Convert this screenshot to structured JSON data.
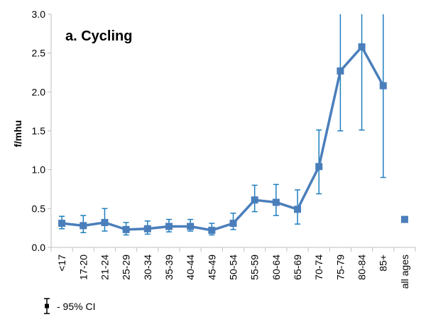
{
  "chart_data": {
    "type": "line",
    "title": "a. Cycling",
    "ylabel": "f/mhu",
    "xlabel": "",
    "ylim": [
      0,
      3.0
    ],
    "yticks": [
      "0.0",
      "0.5",
      "1.0",
      "1.5",
      "2.0",
      "2.5",
      "3.0"
    ],
    "grid": false,
    "categories": [
      "<17",
      "17-20",
      "21-24",
      "25-29",
      "30-34",
      "35-39",
      "40-44",
      "45-49",
      "50-54",
      "55-59",
      "60-64",
      "65-69",
      "70-74",
      "75-79",
      "80-84",
      "85+",
      "all ages"
    ],
    "series": [
      {
        "values": [
          0.31,
          0.28,
          0.32,
          0.23,
          0.24,
          0.27,
          0.27,
          0.22,
          0.31,
          0.61,
          0.58,
          0.49,
          1.04,
          2.27,
          2.58,
          2.08,
          null
        ],
        "ci_low": [
          0.24,
          0.19,
          0.21,
          0.16,
          0.17,
          0.2,
          0.21,
          0.16,
          0.23,
          0.46,
          0.41,
          0.3,
          0.69,
          1.5,
          1.51,
          0.9,
          null
        ],
        "ci_high": [
          0.4,
          0.41,
          0.5,
          0.32,
          0.34,
          0.36,
          0.36,
          0.31,
          0.44,
          0.8,
          0.81,
          0.74,
          1.51,
          3.0,
          3.0,
          3.0,
          null
        ]
      }
    ],
    "summary_point": {
      "category": "all ages",
      "value": 0.36
    },
    "legend": {
      "position": "bottom-left",
      "label": "- 95% CI"
    },
    "colors": {
      "line": "#4a7ebb",
      "marker": "#4a7ebb",
      "errorbar": "#1f7fbf",
      "axis": "#bfbfbf"
    }
  }
}
